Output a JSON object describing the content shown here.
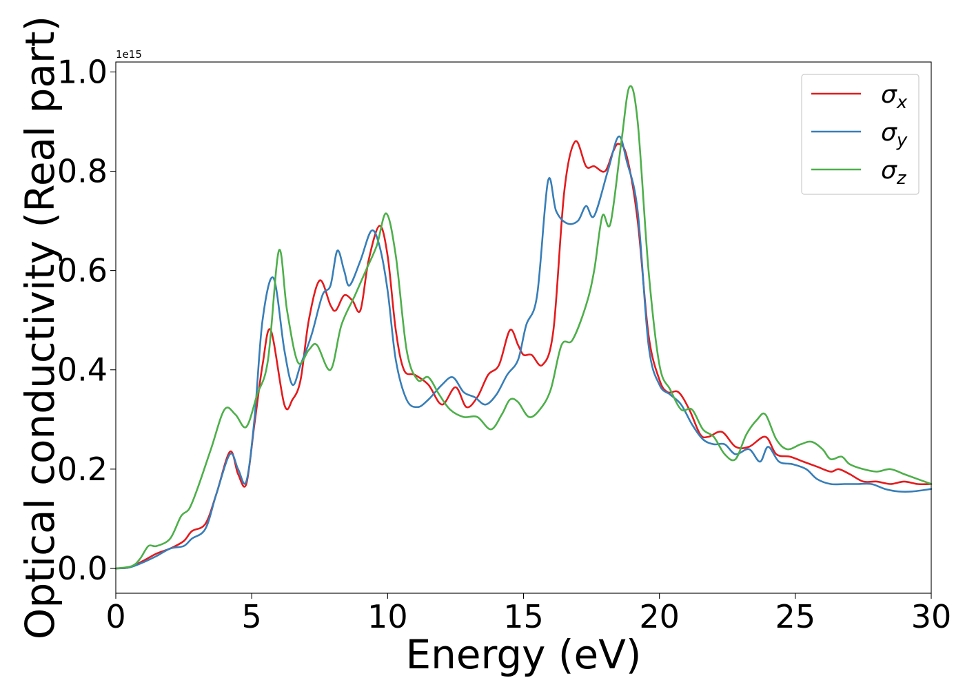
{
  "chart_data": {
    "type": "line",
    "title": "",
    "xlabel": "Energy (eV)",
    "ylabel": "Optical conductivity (Real part)",
    "y_offset_text": "1e15",
    "xlim": [
      0,
      30
    ],
    "ylim": [
      -0.05,
      1.02
    ],
    "xticks": [
      0,
      5,
      10,
      15,
      20,
      25,
      30
    ],
    "xtick_labels": [
      "0",
      "5",
      "10",
      "15",
      "20",
      "25",
      "30"
    ],
    "yticks": [
      0.0,
      0.2,
      0.4,
      0.6,
      0.8,
      1.0
    ],
    "ytick_labels": [
      "0.0",
      "0.2",
      "0.4",
      "0.6",
      "0.8",
      "1.0"
    ],
    "grid": false,
    "legend_position": "top-right",
    "series": [
      {
        "name": "σx",
        "legend_base": "σ",
        "legend_sub": "x",
        "color": "#e41a1c",
        "points": [
          [
            0,
            0
          ],
          [
            0.5,
            0.002
          ],
          [
            1,
            0.015
          ],
          [
            1.5,
            0.03
          ],
          [
            2,
            0.04
          ],
          [
            2.5,
            0.055
          ],
          [
            2.8,
            0.075
          ],
          [
            3.3,
            0.09
          ],
          [
            3.7,
            0.15
          ],
          [
            4.2,
            0.235
          ],
          [
            4.5,
            0.19
          ],
          [
            4.8,
            0.17
          ],
          [
            5.1,
            0.29
          ],
          [
            5.4,
            0.41
          ],
          [
            5.7,
            0.48
          ],
          [
            6.2,
            0.33
          ],
          [
            6.5,
            0.34
          ],
          [
            6.8,
            0.38
          ],
          [
            7.1,
            0.5
          ],
          [
            7.5,
            0.58
          ],
          [
            7.9,
            0.53
          ],
          [
            8.1,
            0.52
          ],
          [
            8.4,
            0.55
          ],
          [
            8.7,
            0.54
          ],
          [
            9.0,
            0.52
          ],
          [
            9.3,
            0.62
          ],
          [
            9.7,
            0.69
          ],
          [
            10.0,
            0.63
          ],
          [
            10.3,
            0.48
          ],
          [
            10.6,
            0.4
          ],
          [
            11.0,
            0.39
          ],
          [
            11.5,
            0.37
          ],
          [
            12.0,
            0.33
          ],
          [
            12.5,
            0.365
          ],
          [
            12.9,
            0.325
          ],
          [
            13.3,
            0.345
          ],
          [
            13.7,
            0.39
          ],
          [
            14.1,
            0.41
          ],
          [
            14.5,
            0.48
          ],
          [
            14.8,
            0.45
          ],
          [
            15.0,
            0.43
          ],
          [
            15.3,
            0.43
          ],
          [
            15.7,
            0.41
          ],
          [
            16.1,
            0.48
          ],
          [
            16.5,
            0.76
          ],
          [
            16.9,
            0.86
          ],
          [
            17.3,
            0.81
          ],
          [
            17.6,
            0.81
          ],
          [
            18.0,
            0.8
          ],
          [
            18.3,
            0.84
          ],
          [
            18.5,
            0.855
          ],
          [
            18.8,
            0.83
          ],
          [
            19.2,
            0.7
          ],
          [
            19.6,
            0.47
          ],
          [
            20.0,
            0.38
          ],
          [
            20.3,
            0.355
          ],
          [
            20.7,
            0.355
          ],
          [
            21.1,
            0.32
          ],
          [
            21.5,
            0.27
          ],
          [
            21.8,
            0.265
          ],
          [
            22.3,
            0.275
          ],
          [
            22.8,
            0.245
          ],
          [
            23.3,
            0.245
          ],
          [
            23.9,
            0.265
          ],
          [
            24.3,
            0.23
          ],
          [
            24.8,
            0.225
          ],
          [
            25.3,
            0.215
          ],
          [
            25.8,
            0.205
          ],
          [
            26.3,
            0.195
          ],
          [
            26.6,
            0.2
          ],
          [
            27.0,
            0.19
          ],
          [
            27.5,
            0.175
          ],
          [
            28.0,
            0.175
          ],
          [
            28.5,
            0.17
          ],
          [
            29.0,
            0.175
          ],
          [
            29.5,
            0.17
          ],
          [
            30.0,
            0.17
          ]
        ]
      },
      {
        "name": "σy",
        "legend_base": "σ",
        "legend_sub": "y",
        "color": "#377eb8",
        "points": [
          [
            0,
            0
          ],
          [
            0.5,
            0.002
          ],
          [
            1,
            0.012
          ],
          [
            1.5,
            0.025
          ],
          [
            2,
            0.04
          ],
          [
            2.5,
            0.045
          ],
          [
            2.8,
            0.06
          ],
          [
            3.3,
            0.08
          ],
          [
            3.7,
            0.15
          ],
          [
            4.2,
            0.23
          ],
          [
            4.5,
            0.2
          ],
          [
            4.8,
            0.175
          ],
          [
            5.1,
            0.3
          ],
          [
            5.4,
            0.5
          ],
          [
            5.8,
            0.585
          ],
          [
            6.2,
            0.44
          ],
          [
            6.5,
            0.37
          ],
          [
            6.8,
            0.41
          ],
          [
            7.2,
            0.47
          ],
          [
            7.6,
            0.55
          ],
          [
            7.9,
            0.57
          ],
          [
            8.15,
            0.64
          ],
          [
            8.4,
            0.6
          ],
          [
            8.6,
            0.57
          ],
          [
            9.0,
            0.62
          ],
          [
            9.4,
            0.68
          ],
          [
            9.7,
            0.65
          ],
          [
            10.0,
            0.56
          ],
          [
            10.3,
            0.42
          ],
          [
            10.7,
            0.34
          ],
          [
            11.1,
            0.325
          ],
          [
            11.5,
            0.34
          ],
          [
            12.0,
            0.37
          ],
          [
            12.4,
            0.385
          ],
          [
            12.8,
            0.355
          ],
          [
            13.2,
            0.345
          ],
          [
            13.6,
            0.33
          ],
          [
            14.0,
            0.35
          ],
          [
            14.4,
            0.39
          ],
          [
            14.8,
            0.42
          ],
          [
            15.1,
            0.49
          ],
          [
            15.5,
            0.55
          ],
          [
            15.9,
            0.78
          ],
          [
            16.2,
            0.72
          ],
          [
            16.6,
            0.695
          ],
          [
            17.0,
            0.7
          ],
          [
            17.3,
            0.73
          ],
          [
            17.6,
            0.71
          ],
          [
            18.1,
            0.8
          ],
          [
            18.5,
            0.87
          ],
          [
            18.8,
            0.82
          ],
          [
            19.2,
            0.72
          ],
          [
            19.6,
            0.45
          ],
          [
            20.0,
            0.37
          ],
          [
            20.4,
            0.35
          ],
          [
            20.8,
            0.33
          ],
          [
            21.2,
            0.29
          ],
          [
            21.6,
            0.26
          ],
          [
            22.0,
            0.25
          ],
          [
            22.4,
            0.25
          ],
          [
            22.8,
            0.23
          ],
          [
            23.3,
            0.24
          ],
          [
            23.7,
            0.215
          ],
          [
            24.0,
            0.245
          ],
          [
            24.4,
            0.215
          ],
          [
            24.9,
            0.21
          ],
          [
            25.4,
            0.2
          ],
          [
            25.8,
            0.18
          ],
          [
            26.3,
            0.17
          ],
          [
            26.8,
            0.17
          ],
          [
            27.3,
            0.17
          ],
          [
            27.8,
            0.17
          ],
          [
            28.3,
            0.16
          ],
          [
            28.8,
            0.155
          ],
          [
            29.3,
            0.155
          ],
          [
            30.0,
            0.16
          ]
        ]
      },
      {
        "name": "σz",
        "legend_base": "σ",
        "legend_sub": "z",
        "color": "#4daf4a",
        "points": [
          [
            0,
            0
          ],
          [
            0.6,
            0.005
          ],
          [
            0.9,
            0.02
          ],
          [
            1.2,
            0.045
          ],
          [
            1.5,
            0.045
          ],
          [
            2.0,
            0.06
          ],
          [
            2.4,
            0.105
          ],
          [
            2.7,
            0.12
          ],
          [
            3.0,
            0.16
          ],
          [
            3.5,
            0.24
          ],
          [
            4.0,
            0.32
          ],
          [
            4.4,
            0.31
          ],
          [
            4.8,
            0.285
          ],
          [
            5.2,
            0.35
          ],
          [
            5.6,
            0.42
          ],
          [
            6.0,
            0.64
          ],
          [
            6.3,
            0.52
          ],
          [
            6.7,
            0.415
          ],
          [
            7.1,
            0.44
          ],
          [
            7.4,
            0.45
          ],
          [
            7.9,
            0.4
          ],
          [
            8.3,
            0.49
          ],
          [
            8.8,
            0.55
          ],
          [
            9.2,
            0.6
          ],
          [
            9.6,
            0.65
          ],
          [
            9.95,
            0.715
          ],
          [
            10.3,
            0.63
          ],
          [
            10.7,
            0.44
          ],
          [
            11.1,
            0.38
          ],
          [
            11.5,
            0.385
          ],
          [
            11.9,
            0.35
          ],
          [
            12.3,
            0.32
          ],
          [
            12.8,
            0.305
          ],
          [
            13.3,
            0.305
          ],
          [
            13.8,
            0.28
          ],
          [
            14.2,
            0.31
          ],
          [
            14.5,
            0.34
          ],
          [
            14.8,
            0.335
          ],
          [
            15.2,
            0.305
          ],
          [
            15.6,
            0.32
          ],
          [
            16.0,
            0.36
          ],
          [
            16.4,
            0.45
          ],
          [
            16.8,
            0.46
          ],
          [
            17.3,
            0.53
          ],
          [
            17.6,
            0.6
          ],
          [
            17.9,
            0.71
          ],
          [
            18.2,
            0.695
          ],
          [
            18.6,
            0.86
          ],
          [
            18.9,
            0.97
          ],
          [
            19.2,
            0.9
          ],
          [
            19.6,
            0.6
          ],
          [
            20.0,
            0.41
          ],
          [
            20.4,
            0.36
          ],
          [
            20.8,
            0.32
          ],
          [
            21.2,
            0.32
          ],
          [
            21.6,
            0.28
          ],
          [
            22.0,
            0.265
          ],
          [
            22.4,
            0.23
          ],
          [
            22.8,
            0.22
          ],
          [
            23.2,
            0.27
          ],
          [
            23.6,
            0.3
          ],
          [
            23.9,
            0.31
          ],
          [
            24.3,
            0.26
          ],
          [
            24.7,
            0.24
          ],
          [
            25.2,
            0.25
          ],
          [
            25.6,
            0.255
          ],
          [
            26.0,
            0.24
          ],
          [
            26.3,
            0.22
          ],
          [
            26.7,
            0.225
          ],
          [
            27.0,
            0.21
          ],
          [
            27.5,
            0.2
          ],
          [
            28.0,
            0.195
          ],
          [
            28.5,
            0.2
          ],
          [
            29.0,
            0.19
          ],
          [
            29.5,
            0.18
          ],
          [
            30.0,
            0.17
          ]
        ]
      }
    ]
  }
}
